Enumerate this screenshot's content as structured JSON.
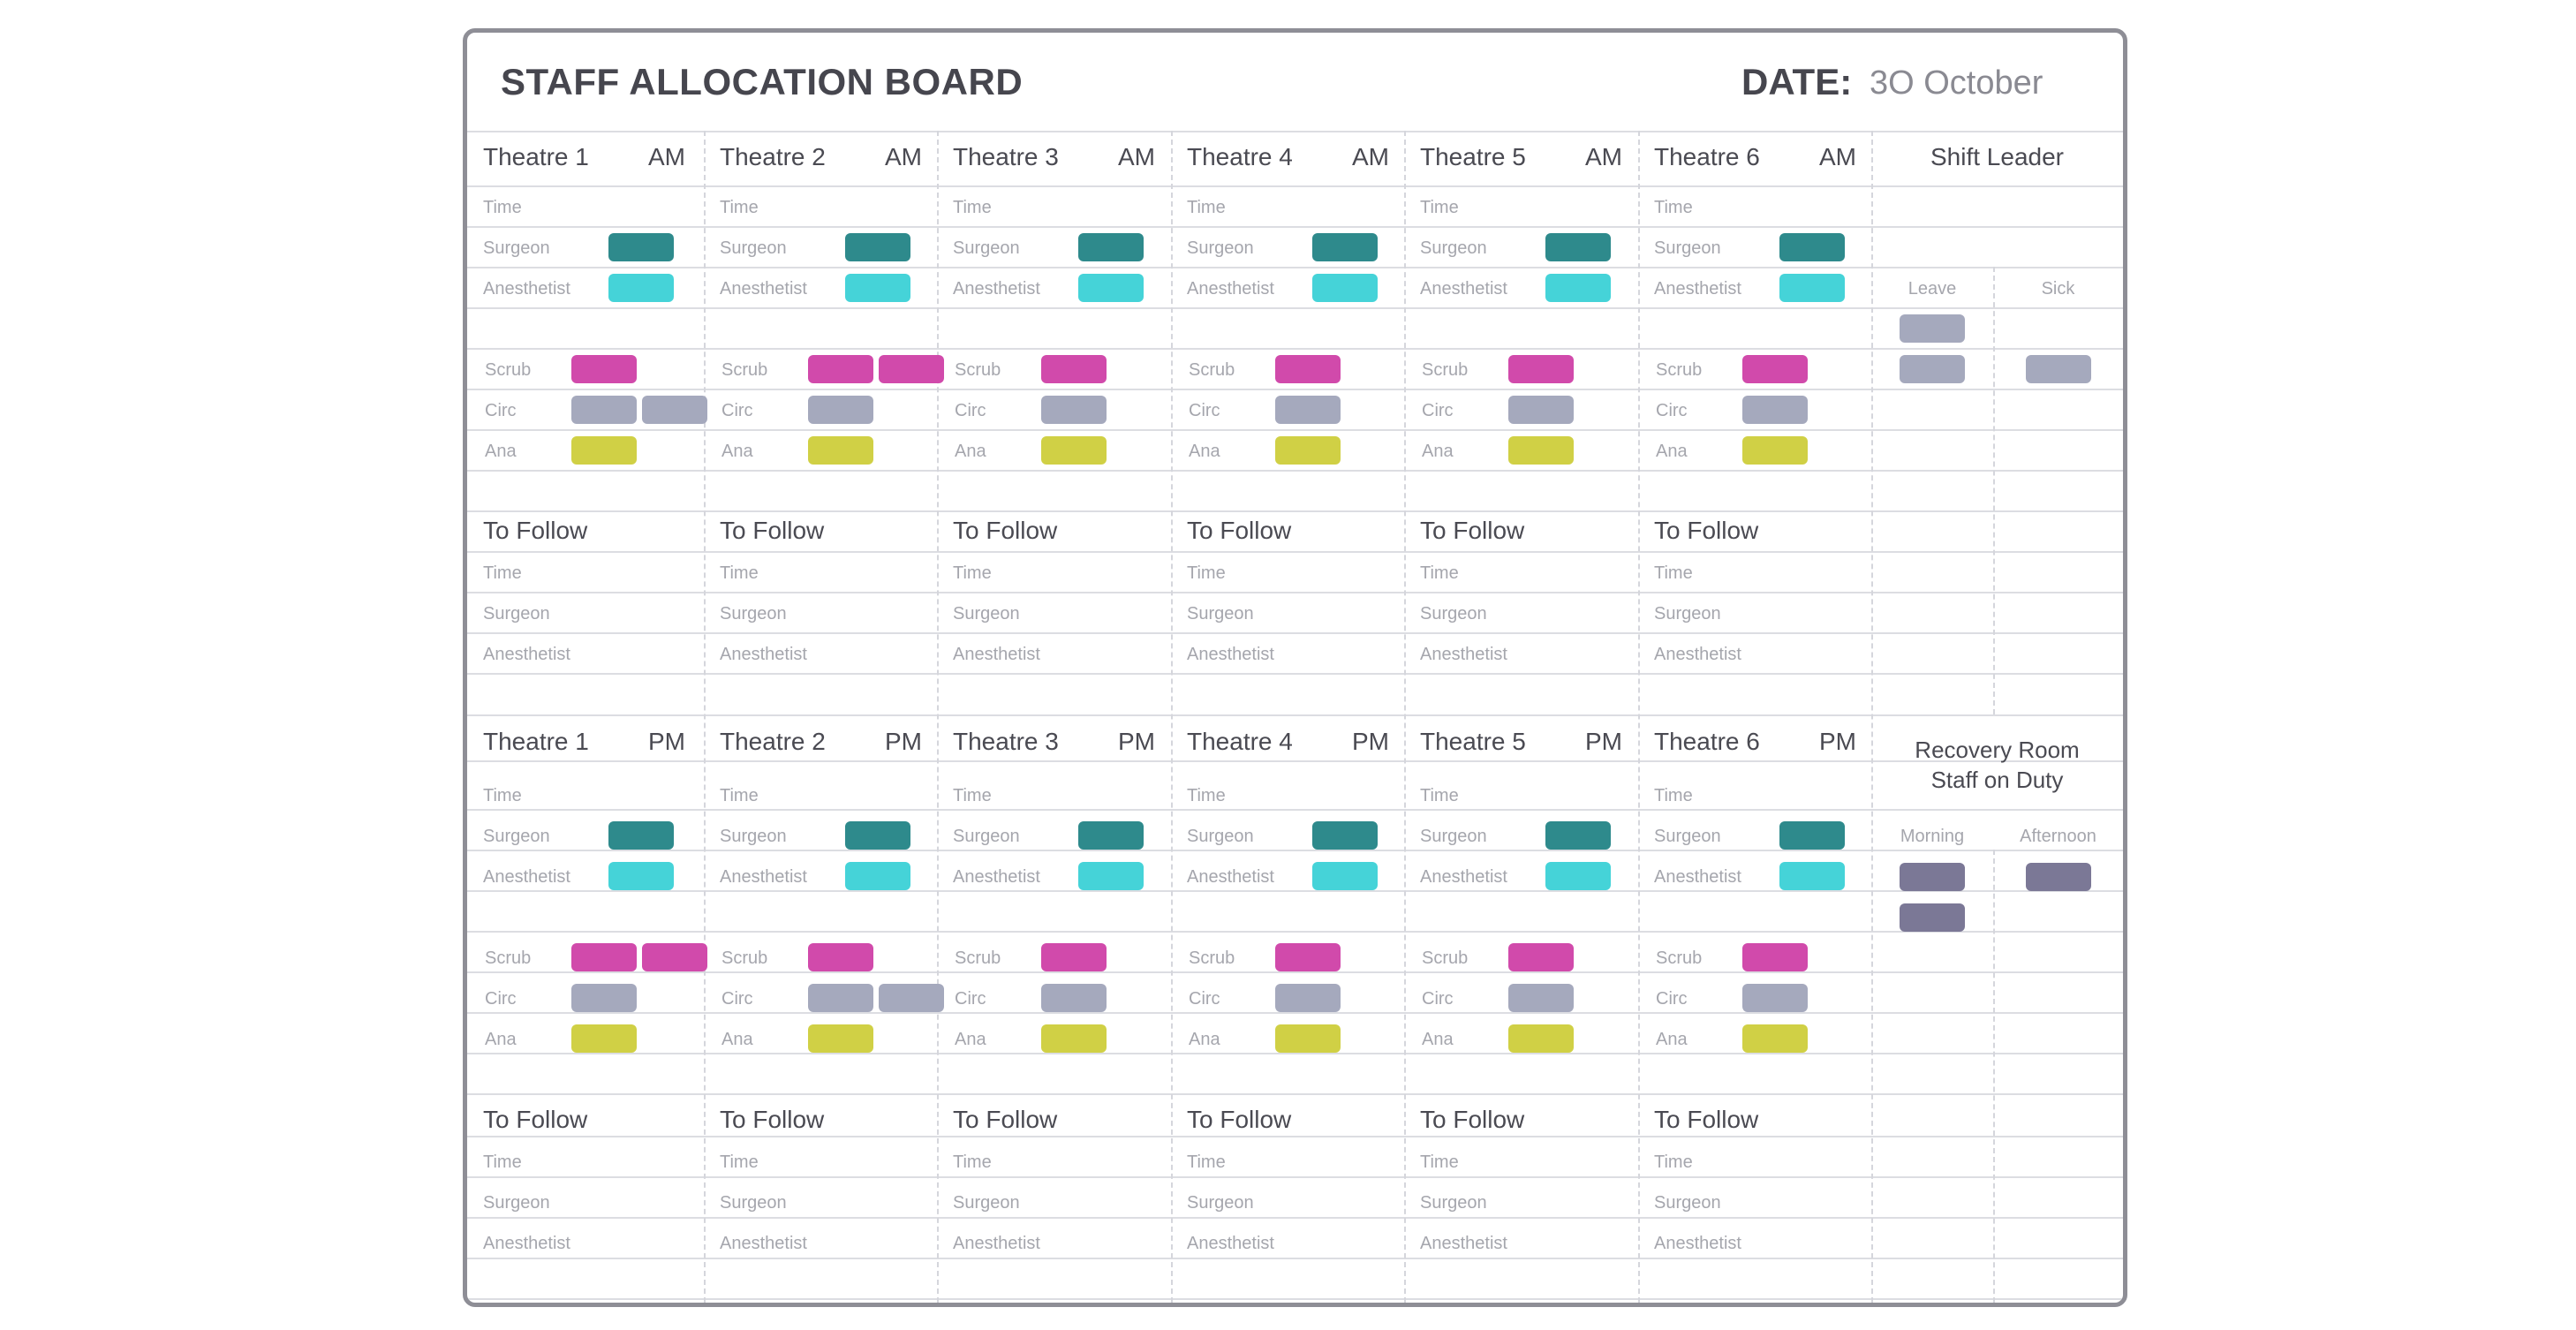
{
  "board": {
    "title": "STAFF ALLOCATION BOARD",
    "date_label": "DATE:",
    "date_value": "3O October"
  },
  "colors": {
    "surgeon": "#2e8a8c",
    "anesthetist": "#45d3d8",
    "scrub": "#d14aab",
    "circ": "#a5a9bd",
    "ana": "#d0d045",
    "recovery": "#7b7896",
    "leave": "#a5a9bd"
  },
  "row_labels": {
    "time": "Time",
    "surgeon": "Surgeon",
    "anesthetist": "Anesthetist",
    "scrub": "Scrub",
    "circ": "Circ",
    "ana": "Ana",
    "to_follow": "To Follow"
  },
  "am_theatres": [
    {
      "name": "Theatre 1",
      "session": "AM",
      "scrub": 1,
      "circ": 2,
      "ana": 1
    },
    {
      "name": "Theatre 2",
      "session": "AM",
      "scrub": 2,
      "circ": 1,
      "ana": 1
    },
    {
      "name": "Theatre 3",
      "session": "AM",
      "scrub": 1,
      "circ": 1,
      "ana": 1
    },
    {
      "name": "Theatre 4",
      "session": "AM",
      "scrub": 1,
      "circ": 1,
      "ana": 1
    },
    {
      "name": "Theatre 5",
      "session": "AM",
      "scrub": 1,
      "circ": 1,
      "ana": 1
    },
    {
      "name": "Theatre 6",
      "session": "AM",
      "scrub": 1,
      "circ": 1,
      "ana": 1
    }
  ],
  "pm_theatres": [
    {
      "name": "Theatre 1",
      "session": "PM",
      "scrub": 2,
      "circ": 1,
      "ana": 1
    },
    {
      "name": "Theatre 2",
      "session": "PM",
      "scrub": 1,
      "circ": 2,
      "ana": 1
    },
    {
      "name": "Theatre 3",
      "session": "PM",
      "scrub": 1,
      "circ": 1,
      "ana": 1
    },
    {
      "name": "Theatre 4",
      "session": "PM",
      "scrub": 1,
      "circ": 1,
      "ana": 1
    },
    {
      "name": "Theatre 5",
      "session": "PM",
      "scrub": 1,
      "circ": 1,
      "ana": 1
    },
    {
      "name": "Theatre 6",
      "session": "PM",
      "scrub": 1,
      "circ": 1,
      "ana": 1
    }
  ],
  "shift_leader": {
    "title": "Shift Leader",
    "leave_label": "Leave",
    "sick_label": "Sick",
    "leave_count": 2,
    "sick_count": 1
  },
  "recovery": {
    "title_line1": "Recovery Room",
    "title_line2": "Staff on Duty",
    "morning_label": "Morning",
    "afternoon_label": "Afternoon",
    "morning_count": 2,
    "afternoon_count": 1
  }
}
